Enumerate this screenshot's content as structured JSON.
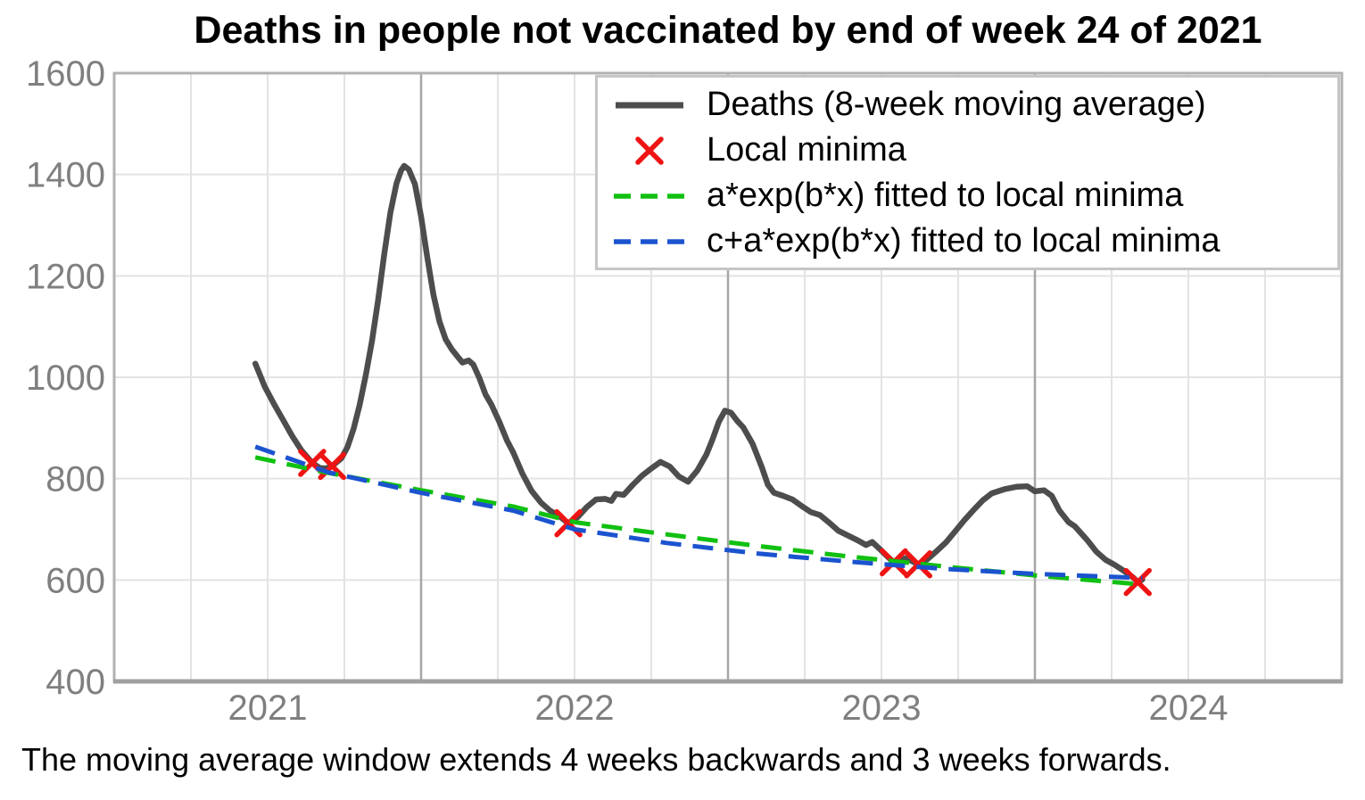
{
  "title": "Deaths in people not vaccinated by end of week 24 of 2021",
  "caption": "The moving average window extends 4 weeks backwards and 3 weeks forwards.",
  "legend": {
    "items": [
      {
        "label": "Deaths (8-week moving average)",
        "sample": "solid-line",
        "color": "#4d4d4d"
      },
      {
        "label": "Local minima",
        "sample": "x-marker",
        "color": "#ee1414"
      },
      {
        "label": "a*exp(b*x) fitted to local minima",
        "sample": "dashed-line",
        "color": "#11c011"
      },
      {
        "label": "c+a*exp(b*x) fitted to local minima",
        "sample": "dashed-line",
        "color": "#1b53cf"
      }
    ]
  },
  "style": {
    "background": "#ffffff",
    "grid_light": "#e3e3e3",
    "grid_dark": "#a6a6a6",
    "frame": "#b2b2b2",
    "axis": "#a0a0a0",
    "tick_label": "#7f7f7f",
    "deaths_line": "#4d4d4d",
    "minima_marker": "#ee1414",
    "fit_exp": "#11c011",
    "fit_offset_exp": "#1b53cf"
  },
  "chart_data": {
    "type": "line",
    "title": "Deaths in people not vaccinated by end of week 24 of 2021",
    "footnote": "The moving average window extends 4 weeks backwards and 3 weeks forwards.",
    "xlabel": "",
    "ylabel": "",
    "x_range": [
      2020.5,
      2024.5
    ],
    "y_range": [
      400,
      1600
    ],
    "x_ticks": [
      2021,
      2022,
      2023,
      2024
    ],
    "y_ticks": [
      400,
      600,
      800,
      1000,
      1200,
      1400,
      1600
    ],
    "grid": {
      "y_lines": [
        600,
        800,
        1000,
        1200,
        1400
      ],
      "x_minor_lines": [
        2020.75,
        2021,
        2021.25,
        2021.75,
        2022,
        2022.25,
        2022.75,
        2023,
        2023.25,
        2023.75,
        2024,
        2024.25
      ],
      "x_major_lines": [
        2021.5,
        2022.5,
        2023.5
      ],
      "legend_position": "upper right"
    },
    "series": [
      {
        "name": "Deaths (8-week moving average)",
        "type": "line",
        "style": "solid",
        "color": "#4d4d4d",
        "points": [
          [
            2020.96,
            1027
          ],
          [
            2020.99,
            982
          ],
          [
            2021.02,
            948
          ],
          [
            2021.05,
            916
          ],
          [
            2021.08,
            884
          ],
          [
            2021.11,
            856
          ],
          [
            2021.145,
            831
          ],
          [
            2021.17,
            821
          ],
          [
            2021.19,
            820
          ],
          [
            2021.21,
            825
          ],
          [
            2021.24,
            840
          ],
          [
            2021.26,
            862
          ],
          [
            2021.28,
            898
          ],
          [
            2021.3,
            946
          ],
          [
            2021.32,
            1005
          ],
          [
            2021.34,
            1072
          ],
          [
            2021.36,
            1152
          ],
          [
            2021.38,
            1243
          ],
          [
            2021.4,
            1325
          ],
          [
            2021.42,
            1383
          ],
          [
            2021.435,
            1408
          ],
          [
            2021.445,
            1417
          ],
          [
            2021.46,
            1410
          ],
          [
            2021.48,
            1381
          ],
          [
            2021.5,
            1317
          ],
          [
            2021.52,
            1237
          ],
          [
            2021.54,
            1163
          ],
          [
            2021.56,
            1110
          ],
          [
            2021.58,
            1075
          ],
          [
            2021.6,
            1055
          ],
          [
            2021.62,
            1040
          ],
          [
            2021.635,
            1029
          ],
          [
            2021.655,
            1033
          ],
          [
            2021.67,
            1025
          ],
          [
            2021.69,
            998
          ],
          [
            2021.71,
            966
          ],
          [
            2021.73,
            945
          ],
          [
            2021.755,
            912
          ],
          [
            2021.78,
            875
          ],
          [
            2021.8,
            852
          ],
          [
            2021.83,
            810
          ],
          [
            2021.86,
            776
          ],
          [
            2021.89,
            753
          ],
          [
            2021.92,
            737
          ],
          [
            2021.95,
            726
          ],
          [
            2021.98,
            712
          ],
          [
            2022.01,
            724
          ],
          [
            2022.04,
            744
          ],
          [
            2022.07,
            759
          ],
          [
            2022.1,
            760
          ],
          [
            2022.12,
            756
          ],
          [
            2022.135,
            770
          ],
          [
            2022.16,
            768
          ],
          [
            2022.19,
            788
          ],
          [
            2022.22,
            806
          ],
          [
            2022.25,
            820
          ],
          [
            2022.28,
            833
          ],
          [
            2022.31,
            824
          ],
          [
            2022.34,
            804
          ],
          [
            2022.37,
            794
          ],
          [
            2022.4,
            816
          ],
          [
            2022.43,
            848
          ],
          [
            2022.45,
            878
          ],
          [
            2022.47,
            912
          ],
          [
            2022.49,
            934
          ],
          [
            2022.51,
            930
          ],
          [
            2022.53,
            914
          ],
          [
            2022.55,
            901
          ],
          [
            2022.58,
            869
          ],
          [
            2022.61,
            823
          ],
          [
            2022.63,
            788
          ],
          [
            2022.65,
            772
          ],
          [
            2022.68,
            766
          ],
          [
            2022.71,
            759
          ],
          [
            2022.74,
            746
          ],
          [
            2022.77,
            734
          ],
          [
            2022.8,
            728
          ],
          [
            2022.83,
            713
          ],
          [
            2022.86,
            697
          ],
          [
            2022.89,
            688
          ],
          [
            2022.92,
            679
          ],
          [
            2022.95,
            669
          ],
          [
            2022.97,
            675
          ],
          [
            2023.0,
            658
          ],
          [
            2023.02,
            646
          ],
          [
            2023.04,
            635
          ],
          [
            2023.08,
            643
          ],
          [
            2023.12,
            631
          ],
          [
            2023.15,
            641
          ],
          [
            2023.18,
            657
          ],
          [
            2023.21,
            674
          ],
          [
            2023.24,
            696
          ],
          [
            2023.27,
            718
          ],
          [
            2023.3,
            738
          ],
          [
            2023.33,
            757
          ],
          [
            2023.36,
            771
          ],
          [
            2023.4,
            779
          ],
          [
            2023.44,
            784
          ],
          [
            2023.475,
            785
          ],
          [
            2023.5,
            775
          ],
          [
            2023.53,
            777
          ],
          [
            2023.555,
            766
          ],
          [
            2023.58,
            737
          ],
          [
            2023.61,
            714
          ],
          [
            2023.63,
            706
          ],
          [
            2023.67,
            679
          ],
          [
            2023.7,
            656
          ],
          [
            2023.73,
            640
          ],
          [
            2023.76,
            630
          ],
          [
            2023.79,
            618
          ],
          [
            2023.82,
            605
          ],
          [
            2023.835,
            596
          ],
          [
            2023.85,
            601
          ]
        ]
      },
      {
        "name": "Local minima",
        "type": "scatter",
        "marker": "x",
        "color": "#ee1414",
        "points": [
          [
            2021.145,
            831
          ],
          [
            2021.21,
            825
          ],
          [
            2021.98,
            712
          ],
          [
            2023.04,
            635
          ],
          [
            2023.12,
            631
          ],
          [
            2023.835,
            596
          ]
        ]
      },
      {
        "name": "a*exp(b*x) fitted to local minima",
        "type": "line",
        "style": "dashed",
        "color": "#11c011",
        "points": [
          [
            2020.96,
            842
          ],
          [
            2021.2,
            811
          ],
          [
            2021.5,
            777
          ],
          [
            2021.8,
            745
          ],
          [
            2022.0,
            714
          ],
          [
            2022.3,
            690
          ],
          [
            2022.6,
            667
          ],
          [
            2022.9,
            646
          ],
          [
            2023.2,
            627
          ],
          [
            2023.5,
            609
          ],
          [
            2023.85,
            591
          ]
        ]
      },
      {
        "name": "c+a*exp(b*x) fitted to local minima",
        "type": "line",
        "style": "dashed",
        "color": "#1b53cf",
        "points": [
          [
            2020.96,
            863
          ],
          [
            2021.2,
            812
          ],
          [
            2021.5,
            772
          ],
          [
            2021.8,
            737
          ],
          [
            2022.0,
            700
          ],
          [
            2022.3,
            673
          ],
          [
            2022.6,
            652
          ],
          [
            2022.9,
            636
          ],
          [
            2023.2,
            622
          ],
          [
            2023.5,
            612
          ],
          [
            2023.85,
            604
          ]
        ]
      }
    ]
  }
}
